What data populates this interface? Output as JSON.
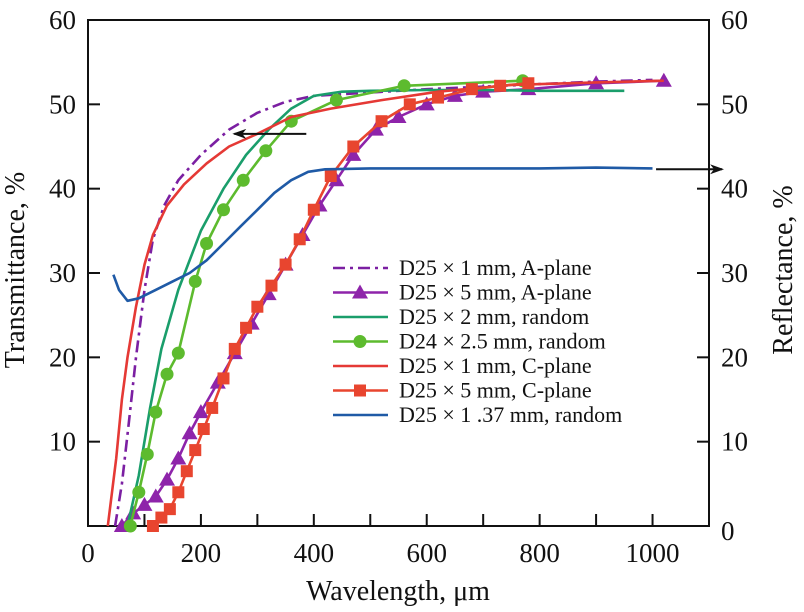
{
  "chart_data": {
    "type": "line",
    "title": "",
    "xlabel": "Wavelength, μm",
    "ylabel": "Transmittance, %",
    "y2label": "Reflectance, %",
    "xlim": [
      0,
      1100
    ],
    "ylim": [
      0,
      60
    ],
    "y2lim": [
      0,
      60
    ],
    "xticks": [
      0,
      200,
      400,
      600,
      800,
      1000
    ],
    "xminor": [
      100,
      300,
      500,
      700,
      900
    ],
    "yticks": [
      10,
      20,
      30,
      40,
      50,
      60
    ],
    "y2ticks": [
      0,
      10,
      20,
      30,
      40,
      50,
      60
    ],
    "grid": false,
    "legend_position": "center-right",
    "annotations": [
      {
        "type": "arrow",
        "direction": "left",
        "meaning": "transmittance axis",
        "at": [
          330,
          46.5
        ]
      },
      {
        "type": "arrow",
        "direction": "right",
        "meaning": "reflectance axis",
        "at": [
          1070,
          42.3
        ]
      }
    ],
    "series": [
      {
        "name": "D25 × 1 mm, A-plane",
        "color": "#7b1fa2",
        "style": "dashdot",
        "marker": "none",
        "axis": "left",
        "x": [
          48,
          60,
          72,
          85,
          100,
          115,
          135,
          160,
          200,
          250,
          300,
          350,
          400,
          500,
          600,
          700,
          800,
          900,
          1000
        ],
        "y": [
          0,
          5,
          12,
          20,
          28,
          34,
          38,
          41,
          44,
          47,
          49,
          50.3,
          51,
          51.4,
          51.8,
          52.1,
          52.4,
          52.7,
          52.9
        ]
      },
      {
        "name": "D25 × 5 mm, A-plane",
        "color": "#8e24aa",
        "style": "solid",
        "marker": "triangle",
        "axis": "left",
        "x": [
          60,
          80,
          100,
          120,
          140,
          160,
          180,
          200,
          230,
          260,
          290,
          320,
          350,
          380,
          410,
          440,
          470,
          510,
          550,
          600,
          650,
          700,
          780,
          900,
          1020
        ],
        "y": [
          0,
          1.5,
          2.5,
          3.5,
          5.5,
          8,
          11,
          13.5,
          17,
          20.5,
          24,
          27.5,
          31,
          34.5,
          38,
          41,
          44,
          47,
          48.5,
          50,
          51,
          51.5,
          51.8,
          52.5,
          52.8
        ]
      },
      {
        "name": "D25 × 2 mm, random",
        "color": "#1a9e6b",
        "style": "solid",
        "marker": "none",
        "axis": "left",
        "x": [
          70,
          90,
          110,
          130,
          160,
          200,
          240,
          280,
          320,
          360,
          400,
          450,
          500,
          600,
          700,
          800,
          950
        ],
        "y": [
          0,
          6,
          14,
          21,
          28,
          35,
          40,
          44,
          47,
          49.5,
          51,
          51.5,
          51.6,
          51.7,
          51.7,
          51.6,
          51.6
        ]
      },
      {
        "name": "D24 × 2.5 mm, random",
        "color": "#5dbb2e",
        "style": "solid",
        "marker": "circle",
        "axis": "left",
        "x": [
          75,
          90,
          105,
          120,
          140,
          160,
          190,
          210,
          240,
          275,
          315,
          360,
          440,
          560,
          770
        ],
        "y": [
          0,
          4,
          8.5,
          13.5,
          18,
          20.5,
          29,
          33.5,
          37.5,
          41,
          44.5,
          48,
          50.5,
          52.2,
          52.8
        ]
      },
      {
        "name": "D25 × 1 mm, C-plane",
        "color": "#e53935",
        "style": "solid",
        "marker": "none",
        "axis": "left",
        "x": [
          35,
          50,
          60,
          70,
          85,
          100,
          115,
          140,
          170,
          210,
          250,
          300,
          360,
          430,
          520,
          620,
          750,
          900,
          1020
        ],
        "y": [
          0,
          8,
          15,
          20,
          26,
          31,
          34.5,
          38,
          40.5,
          43,
          45,
          46.5,
          48.5,
          49.5,
          50.5,
          51.5,
          52.3,
          52.6,
          52.8
        ]
      },
      {
        "name": "D25 × 5 mm, C-plane",
        "color": "#e8452f",
        "style": "solid",
        "marker": "square",
        "axis": "left",
        "x": [
          115,
          130,
          145,
          160,
          175,
          190,
          205,
          220,
          240,
          260,
          280,
          300,
          325,
          350,
          375,
          400,
          430,
          470,
          520,
          570,
          620,
          680,
          730,
          780
        ],
        "y": [
          0,
          1,
          2,
          4,
          6.5,
          9,
          11.5,
          14,
          17.5,
          21,
          23.5,
          26,
          28.5,
          31,
          34,
          37.5,
          41.5,
          45,
          48,
          50,
          50.8,
          51.8,
          52.2,
          52.5
        ]
      },
      {
        "name": "D25 × 1 .37 mm, random",
        "color": "#1f5aa6",
        "style": "solid",
        "marker": "none",
        "axis": "right",
        "x": [
          45,
          55,
          70,
          90,
          120,
          150,
          180,
          210,
          240,
          270,
          300,
          330,
          360,
          390,
          420,
          500,
          600,
          700,
          800,
          900,
          1000
        ],
        "y": [
          29.8,
          28,
          26.7,
          27,
          28,
          29,
          30,
          31.5,
          33.5,
          35.5,
          37.5,
          39.5,
          41,
          42,
          42.3,
          42.4,
          42.4,
          42.4,
          42.4,
          42.5,
          42.4
        ]
      }
    ]
  }
}
